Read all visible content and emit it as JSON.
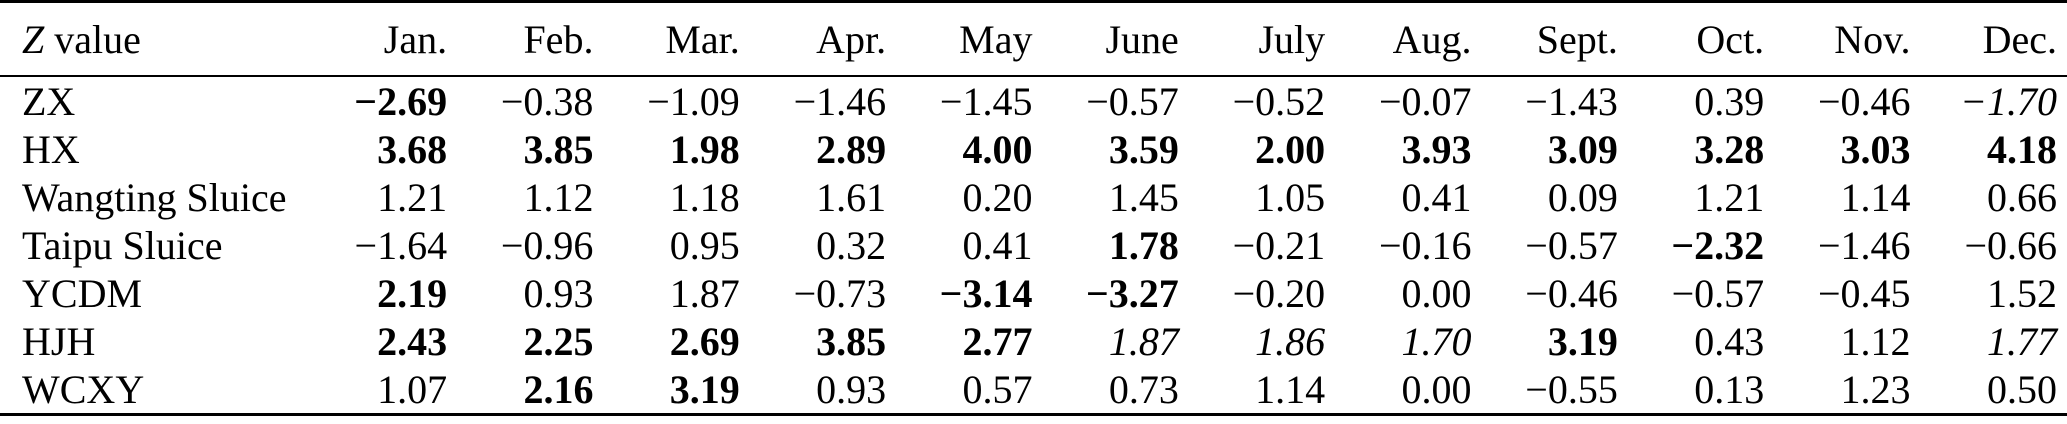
{
  "table": {
    "corner": {
      "symbol": "Z",
      "text": "value"
    },
    "months": [
      "Jan.",
      "Feb.",
      "Mar.",
      "Apr.",
      "May",
      "June",
      "July",
      "Aug.",
      "Sept.",
      "Oct.",
      "Nov.",
      "Dec."
    ],
    "rows": [
      {
        "label": "ZX",
        "cells": [
          {
            "v": "−2.69",
            "s": "b"
          },
          {
            "v": "−0.38",
            "s": "n"
          },
          {
            "v": "−1.09",
            "s": "n"
          },
          {
            "v": "−1.46",
            "s": "n"
          },
          {
            "v": "−1.45",
            "s": "n"
          },
          {
            "v": "−0.57",
            "s": "n"
          },
          {
            "v": "−0.52",
            "s": "n"
          },
          {
            "v": "−0.07",
            "s": "n"
          },
          {
            "v": "−1.43",
            "s": "n"
          },
          {
            "v": "0.39",
            "s": "n"
          },
          {
            "v": "−0.46",
            "s": "n"
          },
          {
            "v": "−1.70",
            "s": "i"
          }
        ]
      },
      {
        "label": "HX",
        "cells": [
          {
            "v": "3.68",
            "s": "b"
          },
          {
            "v": "3.85",
            "s": "b"
          },
          {
            "v": "1.98",
            "s": "b"
          },
          {
            "v": "2.89",
            "s": "b"
          },
          {
            "v": "4.00",
            "s": "b"
          },
          {
            "v": "3.59",
            "s": "b"
          },
          {
            "v": "2.00",
            "s": "b"
          },
          {
            "v": "3.93",
            "s": "b"
          },
          {
            "v": "3.09",
            "s": "b"
          },
          {
            "v": "3.28",
            "s": "b"
          },
          {
            "v": "3.03",
            "s": "b"
          },
          {
            "v": "4.18",
            "s": "b"
          }
        ]
      },
      {
        "label": "Wangting Sluice",
        "cells": [
          {
            "v": "1.21",
            "s": "n"
          },
          {
            "v": "1.12",
            "s": "n"
          },
          {
            "v": "1.18",
            "s": "n"
          },
          {
            "v": "1.61",
            "s": "n"
          },
          {
            "v": "0.20",
            "s": "n"
          },
          {
            "v": "1.45",
            "s": "n"
          },
          {
            "v": "1.05",
            "s": "n"
          },
          {
            "v": "0.41",
            "s": "n"
          },
          {
            "v": "0.09",
            "s": "n"
          },
          {
            "v": "1.21",
            "s": "n"
          },
          {
            "v": "1.14",
            "s": "n"
          },
          {
            "v": "0.66",
            "s": "n"
          }
        ]
      },
      {
        "label": "Taipu Sluice",
        "cells": [
          {
            "v": "−1.64",
            "s": "n"
          },
          {
            "v": "−0.96",
            "s": "n"
          },
          {
            "v": "0.95",
            "s": "n"
          },
          {
            "v": "0.32",
            "s": "n"
          },
          {
            "v": "0.41",
            "s": "n"
          },
          {
            "v": "1.78",
            "s": "b"
          },
          {
            "v": "−0.21",
            "s": "n"
          },
          {
            "v": "−0.16",
            "s": "n"
          },
          {
            "v": "−0.57",
            "s": "n"
          },
          {
            "v": "−2.32",
            "s": "b"
          },
          {
            "v": "−1.46",
            "s": "n"
          },
          {
            "v": "−0.66",
            "s": "n"
          }
        ]
      },
      {
        "label": "YCDM",
        "cells": [
          {
            "v": "2.19",
            "s": "b"
          },
          {
            "v": "0.93",
            "s": "n"
          },
          {
            "v": "1.87",
            "s": "n"
          },
          {
            "v": "−0.73",
            "s": "n"
          },
          {
            "v": "−3.14",
            "s": "b"
          },
          {
            "v": "−3.27",
            "s": "b"
          },
          {
            "v": "−0.20",
            "s": "n"
          },
          {
            "v": "0.00",
            "s": "n"
          },
          {
            "v": "−0.46",
            "s": "n"
          },
          {
            "v": "−0.57",
            "s": "n"
          },
          {
            "v": "−0.45",
            "s": "n"
          },
          {
            "v": "1.52",
            "s": "n"
          }
        ]
      },
      {
        "label": "HJH",
        "cells": [
          {
            "v": "2.43",
            "s": "b"
          },
          {
            "v": "2.25",
            "s": "b"
          },
          {
            "v": "2.69",
            "s": "b"
          },
          {
            "v": "3.85",
            "s": "b"
          },
          {
            "v": "2.77",
            "s": "b"
          },
          {
            "v": "1.87",
            "s": "i"
          },
          {
            "v": "1.86",
            "s": "i"
          },
          {
            "v": "1.70",
            "s": "i"
          },
          {
            "v": "3.19",
            "s": "b"
          },
          {
            "v": "0.43",
            "s": "n"
          },
          {
            "v": "1.12",
            "s": "n"
          },
          {
            "v": "1.77",
            "s": "i"
          }
        ]
      },
      {
        "label": "WCXY",
        "cells": [
          {
            "v": "1.07",
            "s": "n"
          },
          {
            "v": "2.16",
            "s": "b"
          },
          {
            "v": "3.19",
            "s": "b"
          },
          {
            "v": "0.93",
            "s": "n"
          },
          {
            "v": "0.57",
            "s": "n"
          },
          {
            "v": "0.73",
            "s": "n"
          },
          {
            "v": "1.14",
            "s": "n"
          },
          {
            "v": "0.00",
            "s": "n"
          },
          {
            "v": "−0.55",
            "s": "n"
          },
          {
            "v": "0.13",
            "s": "n"
          },
          {
            "v": "1.23",
            "s": "n"
          },
          {
            "v": "0.50",
            "s": "n"
          }
        ]
      }
    ]
  }
}
